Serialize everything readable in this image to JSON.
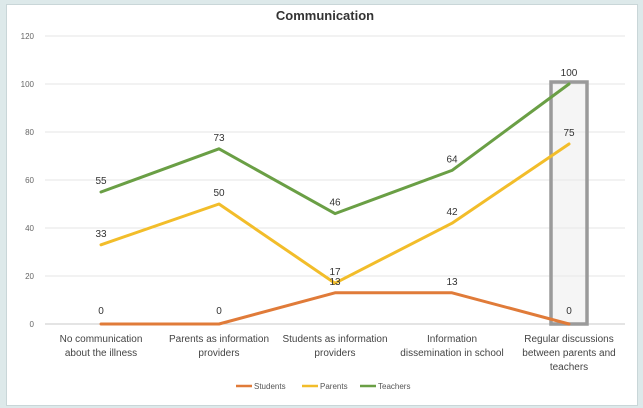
{
  "chart_data": {
    "type": "line",
    "title": "Communication",
    "xlabel": "",
    "ylabel": "",
    "ylim": [
      0,
      120
    ],
    "yticks": [
      "0",
      "20",
      "40",
      "60",
      "80",
      "100",
      "120"
    ],
    "grid": true,
    "legend_position": "bottom",
    "categories": [
      [
        "No communication",
        "about the illness"
      ],
      [
        "Parents as information",
        "providers"
      ],
      [
        "Students as information",
        "providers"
      ],
      [
        "Information",
        "dissemination in school"
      ],
      [
        "Regular discussions",
        "between parents and",
        "teachers"
      ]
    ],
    "series": [
      {
        "name": "Students",
        "color": "#e07b39",
        "values": [
          0,
          0,
          13,
          13,
          0
        ],
        "labels": [
          "0",
          "0",
          "13",
          "13",
          "0"
        ]
      },
      {
        "name": "Parents",
        "color": "#f2bd2a",
        "values": [
          33,
          50,
          17,
          42,
          75
        ],
        "labels": [
          "33",
          "50",
          "17",
          "42",
          "75"
        ]
      },
      {
        "name": "Teachers",
        "color": "#6a9f45",
        "values": [
          55,
          73,
          46,
          64,
          100
        ],
        "labels": [
          "55",
          "73",
          "46",
          "64",
          "100"
        ]
      }
    ],
    "highlight_category_index": 4
  }
}
